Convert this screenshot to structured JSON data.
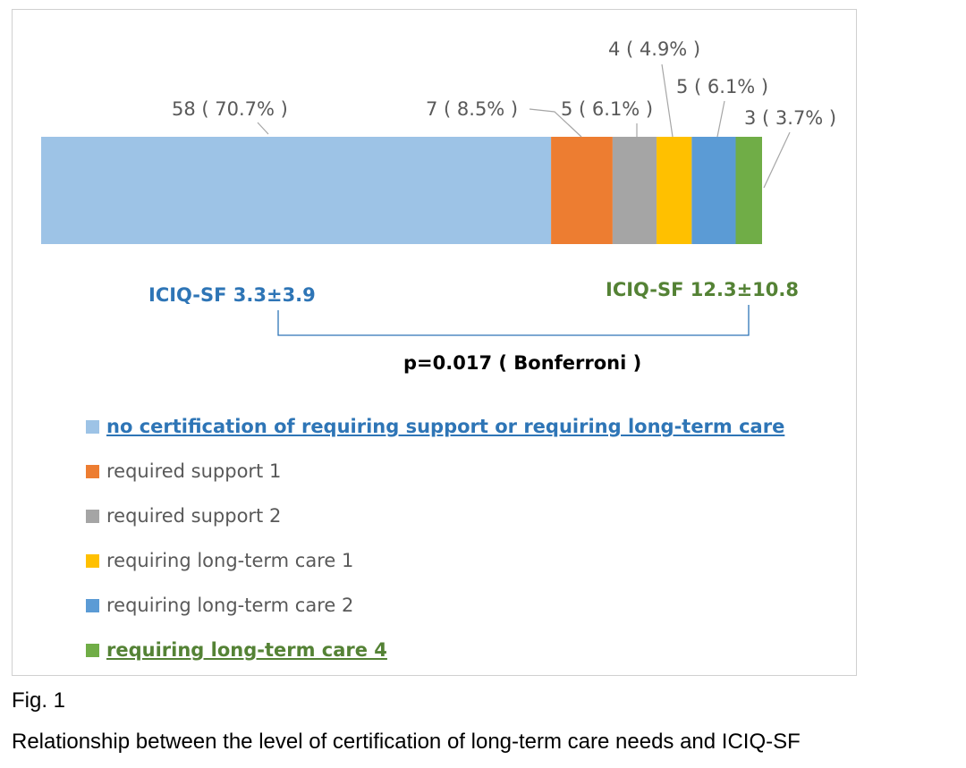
{
  "chart_data": {
    "type": "bar",
    "orientation": "horizontal-stacked",
    "series": [
      {
        "name": "no certification of requiring support or requiring long-term care",
        "value": 58,
        "percent": "70.7%",
        "label": "58 ( 70.7% )",
        "color": "#9DC3E6",
        "highlight": true,
        "highlight_color": "#2E75B6"
      },
      {
        "name": "required support 1",
        "value": 7,
        "percent": "8.5%",
        "label": "7 ( 8.5% )",
        "color": "#ED7D31",
        "highlight": false
      },
      {
        "name": "required support 2",
        "value": 5,
        "percent": "6.1%",
        "label": "5 ( 6.1% )",
        "color": "#A5A5A5",
        "highlight": false
      },
      {
        "name": "requiring long-term care 1",
        "value": 4,
        "percent": "4.9%",
        "label": "4 ( 4.9% )",
        "color": "#FFC000",
        "highlight": false
      },
      {
        "name": "requiring long-term care 2",
        "value": 5,
        "percent": "6.1%",
        "label": "5 ( 6.1% )",
        "color": "#5B9BD5",
        "highlight": false
      },
      {
        "name": "requiring long-term care 4",
        "value": 3,
        "percent": "3.7%",
        "label": "3 ( 3.7% )",
        "color": "#70AD47",
        "highlight": true,
        "highlight_color": "#548235"
      }
    ],
    "annotations": {
      "left_score": "ICIQ-SF 3.3±3.9",
      "left_score_color": "#2E75B6",
      "right_score": "ICIQ-SF 12.3±10.8",
      "right_score_color": "#548235",
      "pvalue": "p=0.017 ( Bonferroni )",
      "bracket_color": "#2E75B6"
    },
    "legend_position": "bottom"
  },
  "figure": {
    "number": "Fig. 1",
    "caption": "Relationship between the level of certification of long-term care needs and ICIQ-SF"
  }
}
